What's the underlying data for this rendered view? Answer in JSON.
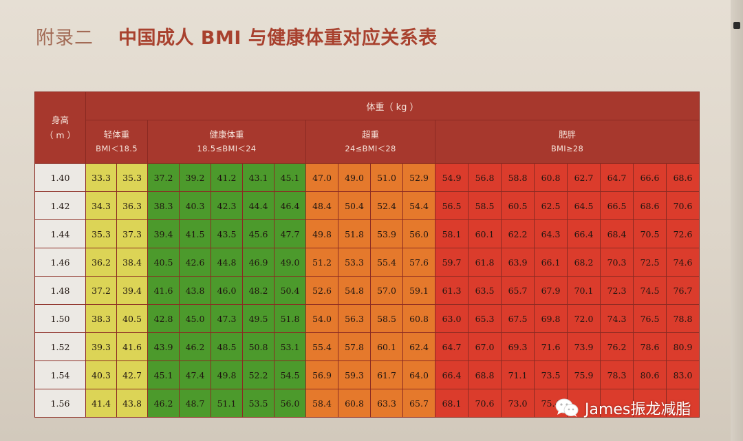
{
  "title": {
    "appendix": "附录二",
    "text": "中国成人 BMI 与健康体重对应关系表"
  },
  "header": {
    "height_label_line1": "身高",
    "height_label_line2": "（ m ）",
    "weight_label": "体重（ kg ）",
    "categories": [
      {
        "name": "轻体重",
        "range": "BMI＜18.5"
      },
      {
        "name": "健康体重",
        "range": "18.5≤BMI＜24"
      },
      {
        "name": "超重",
        "range": "24≤BMI＜28"
      },
      {
        "name": "肥胖",
        "range": "BMI≥28"
      }
    ]
  },
  "rows": [
    {
      "h": "1.40",
      "under": [
        "33.3",
        "35.3"
      ],
      "normal": [
        "37.2",
        "39.2",
        "41.2",
        "43.1",
        "45.1"
      ],
      "over": [
        "47.0",
        "49.0",
        "51.0",
        "52.9"
      ],
      "obese": [
        "54.9",
        "56.8",
        "58.8",
        "60.8",
        "62.7",
        "64.7",
        "66.6",
        "68.6"
      ]
    },
    {
      "h": "1.42",
      "under": [
        "34.3",
        "36.3"
      ],
      "normal": [
        "38.3",
        "40.3",
        "42.3",
        "44.4",
        "46.4"
      ],
      "over": [
        "48.4",
        "50.4",
        "52.4",
        "54.4"
      ],
      "obese": [
        "56.5",
        "58.5",
        "60.5",
        "62.5",
        "64.5",
        "66.5",
        "68.6",
        "70.6"
      ]
    },
    {
      "h": "1.44",
      "under": [
        "35.3",
        "37.3"
      ],
      "normal": [
        "39.4",
        "41.5",
        "43.5",
        "45.6",
        "47.7"
      ],
      "over": [
        "49.8",
        "51.8",
        "53.9",
        "56.0"
      ],
      "obese": [
        "58.1",
        "60.1",
        "62.2",
        "64.3",
        "66.4",
        "68.4",
        "70.5",
        "72.6"
      ]
    },
    {
      "h": "1.46",
      "under": [
        "36.2",
        "38.4"
      ],
      "normal": [
        "40.5",
        "42.6",
        "44.8",
        "46.9",
        "49.0"
      ],
      "over": [
        "51.2",
        "53.3",
        "55.4",
        "57.6"
      ],
      "obese": [
        "59.7",
        "61.8",
        "63.9",
        "66.1",
        "68.2",
        "70.3",
        "72.5",
        "74.6"
      ]
    },
    {
      "h": "1.48",
      "under": [
        "37.2",
        "39.4"
      ],
      "normal": [
        "41.6",
        "43.8",
        "46.0",
        "48.2",
        "50.4"
      ],
      "over": [
        "52.6",
        "54.8",
        "57.0",
        "59.1"
      ],
      "obese": [
        "61.3",
        "63.5",
        "65.7",
        "67.9",
        "70.1",
        "72.3",
        "74.5",
        "76.7"
      ]
    },
    {
      "h": "1.50",
      "under": [
        "38.3",
        "40.5"
      ],
      "normal": [
        "42.8",
        "45.0",
        "47.3",
        "49.5",
        "51.8"
      ],
      "over": [
        "54.0",
        "56.3",
        "58.5",
        "60.8"
      ],
      "obese": [
        "63.0",
        "65.3",
        "67.5",
        "69.8",
        "72.0",
        "74.3",
        "76.5",
        "78.8"
      ]
    },
    {
      "h": "1.52",
      "under": [
        "39.3",
        "41.6"
      ],
      "normal": [
        "43.9",
        "46.2",
        "48.5",
        "50.8",
        "53.1"
      ],
      "over": [
        "55.4",
        "57.8",
        "60.1",
        "62.4"
      ],
      "obese": [
        "64.7",
        "67.0",
        "69.3",
        "71.6",
        "73.9",
        "76.2",
        "78.6",
        "80.9"
      ]
    },
    {
      "h": "1.54",
      "under": [
        "40.3",
        "42.7"
      ],
      "normal": [
        "45.1",
        "47.4",
        "49.8",
        "52.2",
        "54.5"
      ],
      "over": [
        "56.9",
        "59.3",
        "61.7",
        "64.0"
      ],
      "obese": [
        "66.4",
        "68.8",
        "71.1",
        "73.5",
        "75.9",
        "78.3",
        "80.6",
        "83.0"
      ]
    },
    {
      "h": "1.56",
      "under": [
        "41.4",
        "43.8"
      ],
      "normal": [
        "46.2",
        "48.7",
        "51.1",
        "53.5",
        "56.0"
      ],
      "over": [
        "58.4",
        "60.8",
        "63.3",
        "65.7"
      ],
      "obese": [
        "68.1",
        "70.6",
        "73.0",
        "75.4"
      ]
    }
  ],
  "watermark": {
    "text": "James振龙减脂",
    "icon": "wechat-icon"
  }
}
